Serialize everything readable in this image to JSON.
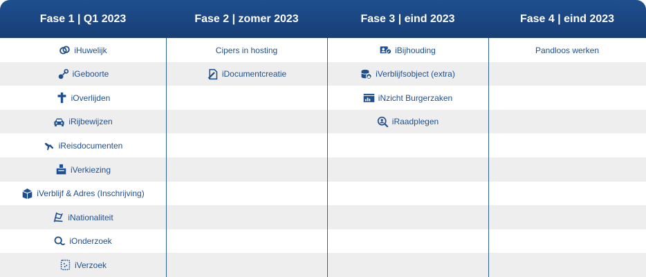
{
  "headers": [
    "Fase 1 | Q1 2023",
    "Fase 2 | zomer 2023",
    "Fase 3 | eind 2023",
    "Fase 4 | eind 2023"
  ],
  "columns": [
    [
      {
        "label": "iHuwelijk",
        "icon": "rings-icon"
      },
      {
        "label": "iGeboorte",
        "icon": "baby-rattle-icon"
      },
      {
        "label": "iOverlijden",
        "icon": "cross-icon"
      },
      {
        "label": "iRijbewijzen",
        "icon": "car-icon"
      },
      {
        "label": "iReisdocumenten",
        "icon": "airplane-icon"
      },
      {
        "label": "iVerkiezing",
        "icon": "ballot-box-icon"
      },
      {
        "label": "iVerblijf & Adres (Inschrijving)",
        "icon": "house-box-icon"
      },
      {
        "label": "iNationaliteit",
        "icon": "flag-icon"
      },
      {
        "label": "iOnderzoek",
        "icon": "magnifier-icon"
      },
      {
        "label": "iVerzoek",
        "icon": "request-document-icon"
      }
    ],
    [
      {
        "label": "Cipers in hosting",
        "icon": ""
      },
      {
        "label": "iDocumentcreatie",
        "icon": "document-create-icon"
      }
    ],
    [
      {
        "label": "iBijhouding",
        "icon": "user-card-edit-icon"
      },
      {
        "label": "iVerblijfsobject (extra)",
        "icon": "database-home-icon"
      },
      {
        "label": "iNzicht Burgerzaken",
        "icon": "dashboard-chart-icon"
      },
      {
        "label": "iRaadplegen",
        "icon": "search-person-icon"
      }
    ],
    [
      {
        "label": "Pandloos werken",
        "icon": ""
      }
    ]
  ],
  "colors": {
    "header": "#1a4580",
    "text": "#1e4f8e",
    "stripe": "#eeeeef",
    "divider": "#2e5f9e"
  }
}
